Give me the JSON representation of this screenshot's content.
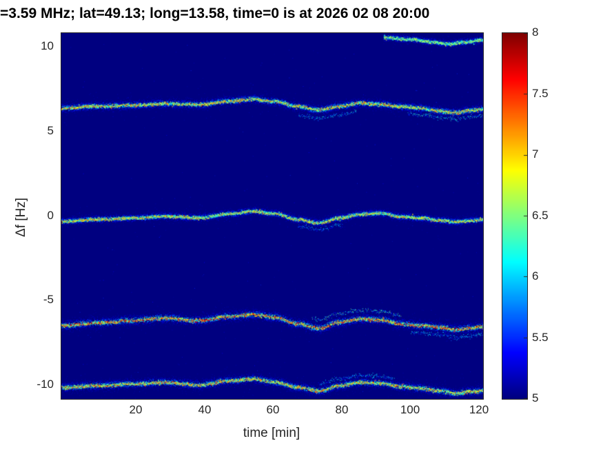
{
  "chart_data": {
    "type": "heatmap",
    "title": "=3.59 MHz;  lat=49.13; long=13.58, time=0 is at 2026 02 08 20:00",
    "xlabel": "time [min]",
    "ylabel": "Δf [Hz]",
    "x_range": [
      -2,
      121
    ],
    "y_range": [
      -10.8,
      10.8
    ],
    "x_ticks": [
      20,
      40,
      60,
      80,
      100,
      120
    ],
    "y_ticks": [
      10,
      5,
      0,
      -5,
      -10
    ],
    "grid": false,
    "colormap": "jet",
    "background_value": 5,
    "colorbar": {
      "min": 5,
      "max": 8,
      "position": "right",
      "ticks": [
        8,
        7.5,
        7,
        6.5,
        6,
        5.5,
        5
      ]
    },
    "traces": [
      {
        "name": "upper-sideband-+6.5Hz",
        "points": [
          [
            -2,
            6.38
          ],
          [
            8,
            6.5
          ],
          [
            18,
            6.55
          ],
          [
            28,
            6.65
          ],
          [
            38,
            6.6
          ],
          [
            47,
            6.8
          ],
          [
            54,
            6.92
          ],
          [
            60,
            6.78
          ],
          [
            67,
            6.48
          ],
          [
            73,
            6.28
          ],
          [
            79,
            6.5
          ],
          [
            85,
            6.68
          ],
          [
            91,
            6.62
          ],
          [
            97,
            6.48
          ],
          [
            103,
            6.38
          ],
          [
            108,
            6.22
          ],
          [
            113,
            6.12
          ],
          [
            117,
            6.25
          ],
          [
            121,
            6.32
          ]
        ],
        "spread": 0.15,
        "peak": 7.4,
        "echoes": [
          {
            "offset": -0.5,
            "t0": 67,
            "t1": 84,
            "scale": 0.35
          },
          {
            "offset": -0.38,
            "t0": 99,
            "t1": 121,
            "scale": 0.4
          }
        ]
      },
      {
        "name": "carrier-0Hz",
        "points": [
          [
            -2,
            -0.3
          ],
          [
            8,
            -0.18
          ],
          [
            18,
            -0.1
          ],
          [
            28,
            0.0
          ],
          [
            38,
            -0.08
          ],
          [
            47,
            0.15
          ],
          [
            54,
            0.3
          ],
          [
            60,
            0.15
          ],
          [
            67,
            -0.18
          ],
          [
            73,
            -0.38
          ],
          [
            79,
            -0.1
          ],
          [
            85,
            0.12
          ],
          [
            91,
            0.18
          ],
          [
            97,
            -0.02
          ],
          [
            103,
            -0.1
          ],
          [
            108,
            -0.22
          ],
          [
            113,
            -0.32
          ],
          [
            117,
            -0.25
          ],
          [
            121,
            -0.18
          ]
        ],
        "spread": 0.13,
        "peak": 7.3,
        "echoes": [
          {
            "offset": -0.4,
            "t0": 67,
            "t1": 80,
            "scale": 0.3
          }
        ]
      },
      {
        "name": "lower-sideband--6.3Hz",
        "points": [
          [
            -2,
            -6.45
          ],
          [
            8,
            -6.3
          ],
          [
            18,
            -6.15
          ],
          [
            28,
            -6.0
          ],
          [
            38,
            -6.15
          ],
          [
            47,
            -5.9
          ],
          [
            54,
            -5.8
          ],
          [
            60,
            -5.95
          ],
          [
            67,
            -6.35
          ],
          [
            73,
            -6.6
          ],
          [
            79,
            -6.25
          ],
          [
            85,
            -6.05
          ],
          [
            91,
            -6.1
          ],
          [
            97,
            -6.35
          ],
          [
            103,
            -6.45
          ],
          [
            108,
            -6.55
          ],
          [
            113,
            -6.7
          ],
          [
            117,
            -6.6
          ],
          [
            121,
            -6.5
          ]
        ],
        "spread": 0.17,
        "peak": 7.9,
        "echoes": [
          {
            "offset": 0.5,
            "t0": 71,
            "t1": 97,
            "scale": 0.45
          },
          {
            "offset": -0.45,
            "t0": 100,
            "t1": 121,
            "scale": 0.35
          }
        ]
      },
      {
        "name": "lower-trace--10Hz",
        "points": [
          [
            -2,
            -10.1
          ],
          [
            8,
            -10.0
          ],
          [
            18,
            -9.9
          ],
          [
            28,
            -9.8
          ],
          [
            38,
            -9.95
          ],
          [
            47,
            -9.7
          ],
          [
            54,
            -9.6
          ],
          [
            60,
            -9.78
          ],
          [
            67,
            -10.1
          ],
          [
            73,
            -10.3
          ],
          [
            79,
            -10.0
          ],
          [
            85,
            -9.8
          ],
          [
            91,
            -9.85
          ],
          [
            97,
            -10.05
          ],
          [
            103,
            -10.15
          ],
          [
            108,
            -10.3
          ],
          [
            113,
            -10.45
          ],
          [
            117,
            -10.35
          ],
          [
            121,
            -10.3
          ]
        ],
        "spread": 0.16,
        "peak": 7.5,
        "echoes": [
          {
            "offset": 0.4,
            "t0": 73,
            "t1": 95,
            "scale": 0.35
          }
        ]
      },
      {
        "name": "top-edge-trace-+10.3Hz",
        "points": [
          [
            92,
            10.55
          ],
          [
            100,
            10.45
          ],
          [
            106,
            10.3
          ],
          [
            111,
            10.18
          ],
          [
            116,
            10.3
          ],
          [
            121,
            10.42
          ]
        ],
        "spread": 0.12,
        "peak": 6.9,
        "echoes": []
      }
    ]
  }
}
